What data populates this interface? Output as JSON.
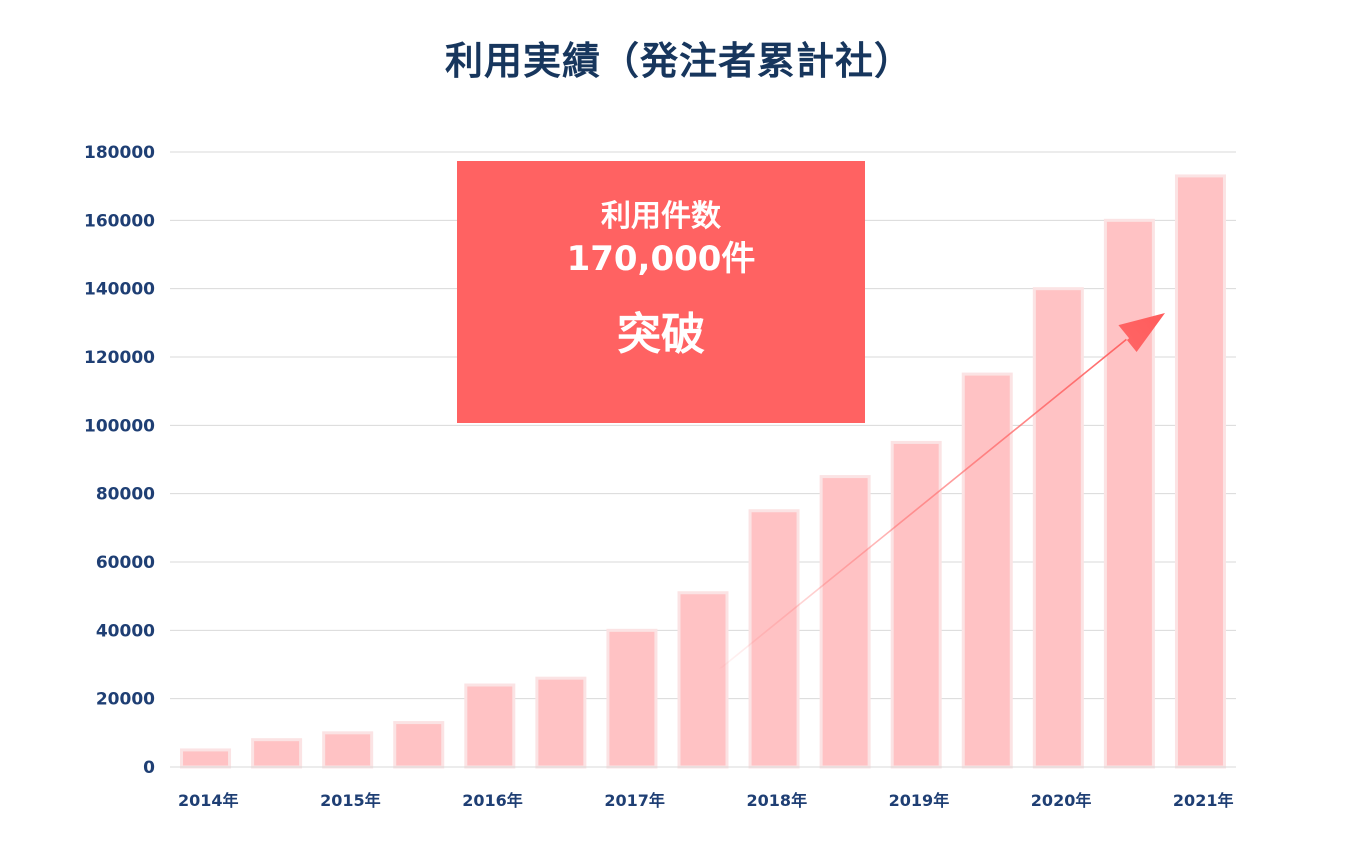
{
  "title": "利用実績（発注者累計社）",
  "callout": {
    "line1": "利用件数",
    "line2": "170,000件",
    "line3": "突破"
  },
  "colors": {
    "title": "#17365d",
    "axis_text": "#1f3f74",
    "bar_fill": "#ffc2c4",
    "bar_edge": "#fbe3e4",
    "callout_bg": "#ff6262",
    "arrow": "#ff6b6b",
    "grid": "#d9d9d9"
  },
  "chart_data": {
    "type": "bar",
    "title": "利用実績（発注者累計社）",
    "xlabel": "",
    "ylabel": "",
    "ylim": [
      0,
      180000
    ],
    "yticks": [
      0,
      20000,
      40000,
      60000,
      80000,
      100000,
      120000,
      140000,
      160000,
      180000
    ],
    "xtick_labels": [
      "2014年",
      "2015年",
      "2016年",
      "2017年",
      "2018年",
      "2019年",
      "2020年",
      "2021年"
    ],
    "values": [
      5000,
      8000,
      10000,
      13000,
      24000,
      26000,
      40000,
      51000,
      75000,
      85000,
      95000,
      115000,
      140000,
      160000,
      173000
    ],
    "grid": true,
    "legend": "none",
    "annotation_arrow": "upward trend arrow from the 2017–2018 bars toward the 2021 bar"
  }
}
